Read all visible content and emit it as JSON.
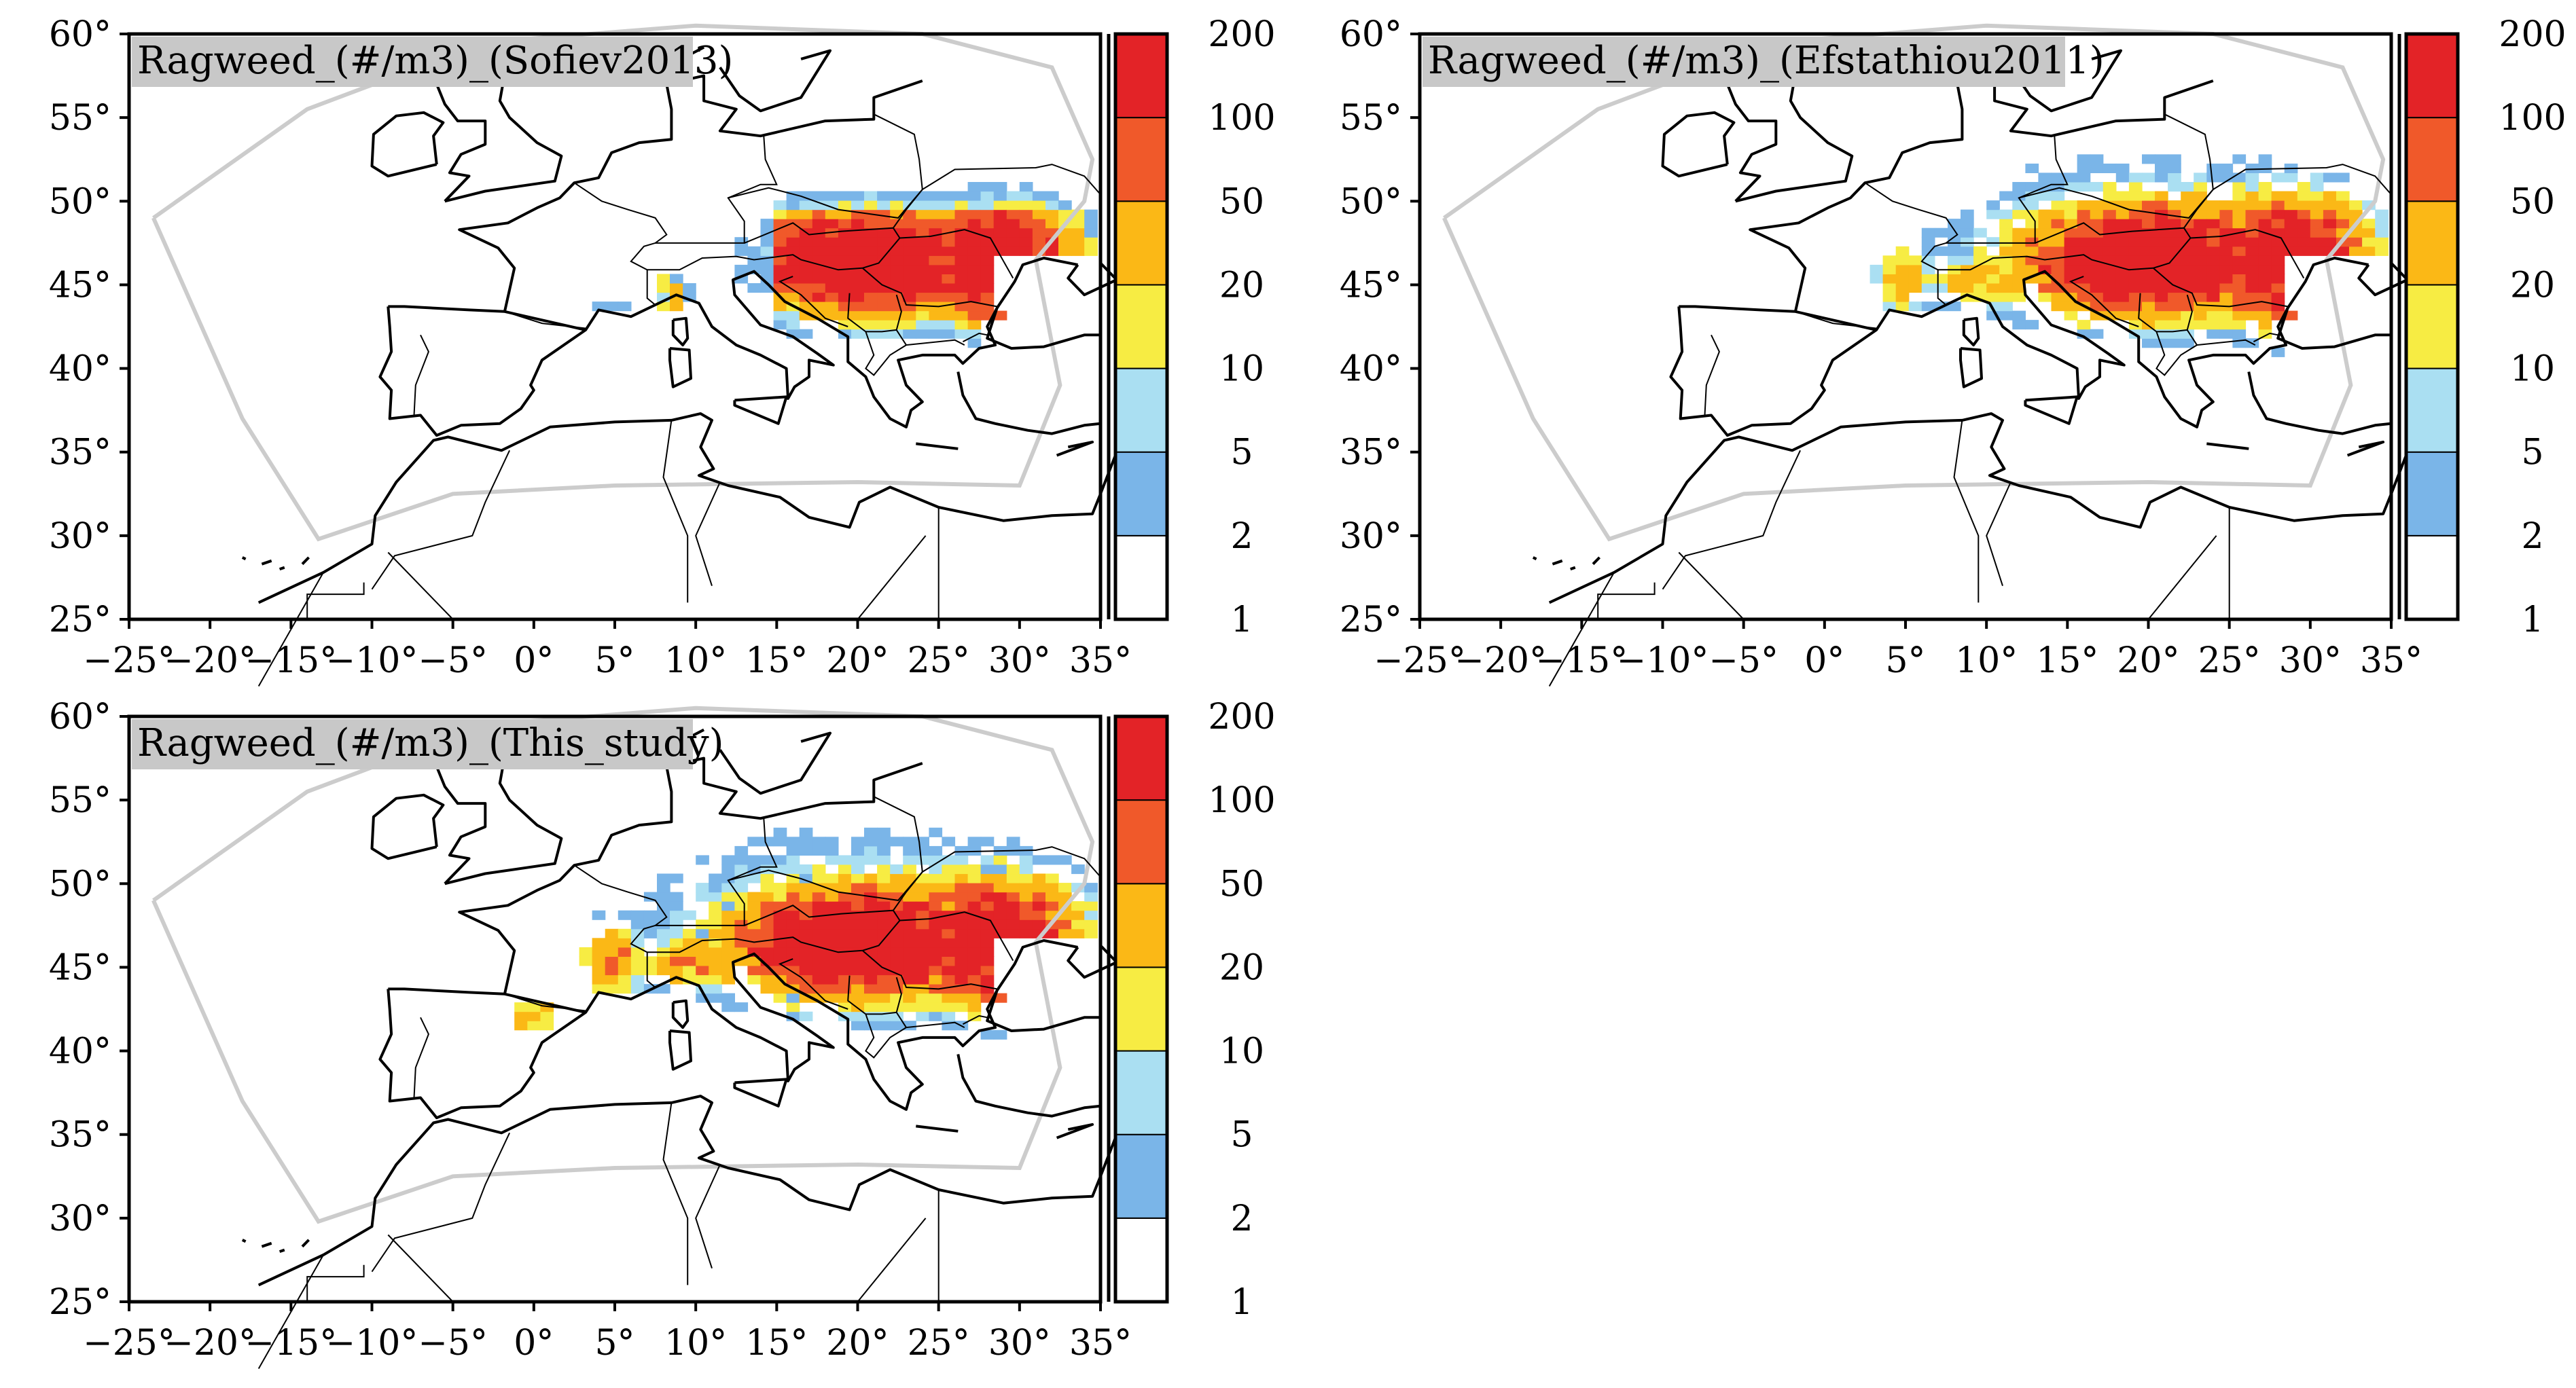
{
  "figure": {
    "panels": [
      {
        "id": "sofiev",
        "title": "Ragweed_(#/m3)_(Sofiev2013)",
        "pattern": "sofiev"
      },
      {
        "id": "efstathiou",
        "title": "Ragweed_(#/m3)_(Efstathiou2011)",
        "pattern": "efstathiou"
      },
      {
        "id": "this-study",
        "title": "Ragweed_(#/m3)_(This_study)",
        "pattern": "this_study"
      }
    ],
    "lon_ticks": [
      "−25°",
      "−20°",
      "−15°",
      "−10°",
      "−5°",
      "0°",
      "5°",
      "10°",
      "15°",
      "20°",
      "25°",
      "30°",
      "35°"
    ],
    "lat_ticks": [
      "25°",
      "30°",
      "35°",
      "40°",
      "45°",
      "50°",
      "55°",
      "60°"
    ],
    "lon_range": [
      -25,
      35
    ],
    "lat_range": [
      25,
      60
    ],
    "colorbar": {
      "labels": [
        "1",
        "2",
        "5",
        "10",
        "20",
        "50",
        "100",
        "200"
      ],
      "colors": [
        "#ffffff",
        "#7ab5e8",
        "#aadff2",
        "#f7ec43",
        "#fbb816",
        "#f0592a",
        "#e32327"
      ]
    }
  }
}
